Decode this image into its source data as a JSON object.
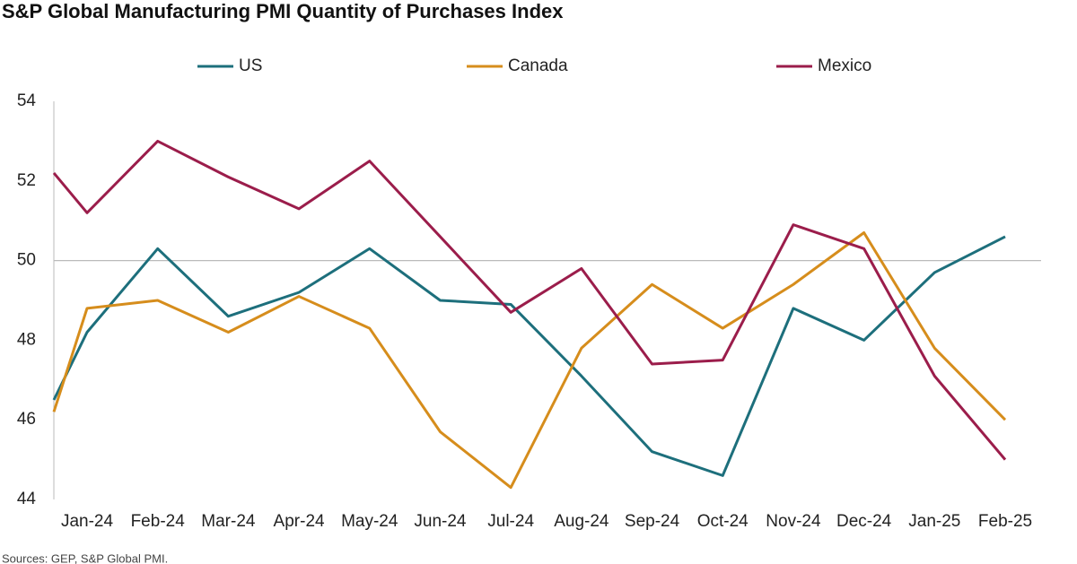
{
  "chart_data": {
    "type": "line",
    "title": "S&P Global Manufacturing PMI Quantity of Purchases Index",
    "source": "Sources: GEP, S&P Global PMI.",
    "categories": [
      null,
      "Jan-24",
      "Feb-24",
      "Mar-24",
      "Apr-24",
      "May-24",
      "Jun-24",
      "Jul-24",
      "Aug-24",
      "Sep-24",
      "Oct-24",
      "Nov-24",
      "Dec-24",
      "Jan-25",
      "Feb-25"
    ],
    "series": [
      {
        "name": "US",
        "color": "#1d6f7c",
        "values": [
          46.5,
          48.2,
          50.3,
          48.6,
          49.2,
          50.3,
          49.0,
          48.9,
          47.1,
          45.2,
          44.6,
          48.8,
          48.0,
          49.7,
          50.6
        ]
      },
      {
        "name": "Canada",
        "color": "#d68d1c",
        "values": [
          46.2,
          48.8,
          49.0,
          48.2,
          49.1,
          48.3,
          45.7,
          44.3,
          47.8,
          49.4,
          48.3,
          49.4,
          50.7,
          47.8,
          46.0
        ]
      },
      {
        "name": "Mexico",
        "color": "#9b1d4b",
        "values": [
          52.2,
          51.2,
          53.0,
          52.1,
          51.3,
          52.5,
          50.6,
          48.7,
          49.8,
          47.4,
          47.5,
          50.9,
          50.3,
          47.1,
          45.0
        ]
      }
    ],
    "ylim": [
      44,
      54
    ],
    "yticks": [
      44,
      46,
      48,
      50,
      52,
      54
    ],
    "reference_line": 50,
    "legend": "top"
  }
}
